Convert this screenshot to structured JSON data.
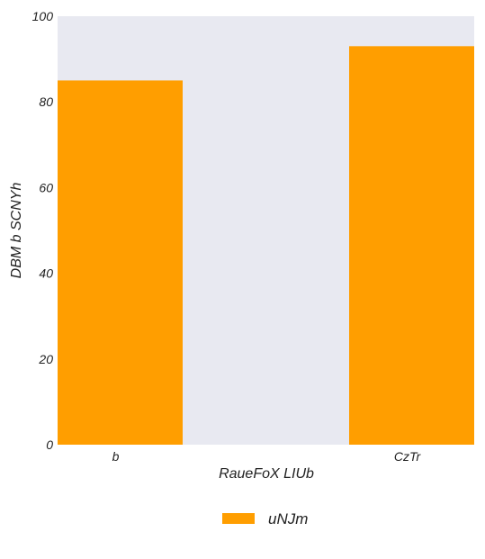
{
  "chart_data": {
    "type": "bar",
    "title": "",
    "xlabel": "RaueFoX LIUb",
    "ylabel": "DBM b SCNYh",
    "categories": [
      "b",
      "CzTr"
    ],
    "series": [
      {
        "name": "uNJm",
        "values": [
          85,
          93
        ],
        "color": "#ff9e00"
      }
    ],
    "ylim": [
      0,
      100
    ],
    "yticks": [
      0,
      20,
      40,
      60,
      80,
      100
    ],
    "ytick_labels": [
      "0",
      "20",
      "40",
      "60",
      "80",
      "100"
    ],
    "grid": false,
    "background_color": "#e8e9f1",
    "legend": {
      "position": "bottom-center",
      "entries": [
        "uNJm"
      ]
    }
  }
}
